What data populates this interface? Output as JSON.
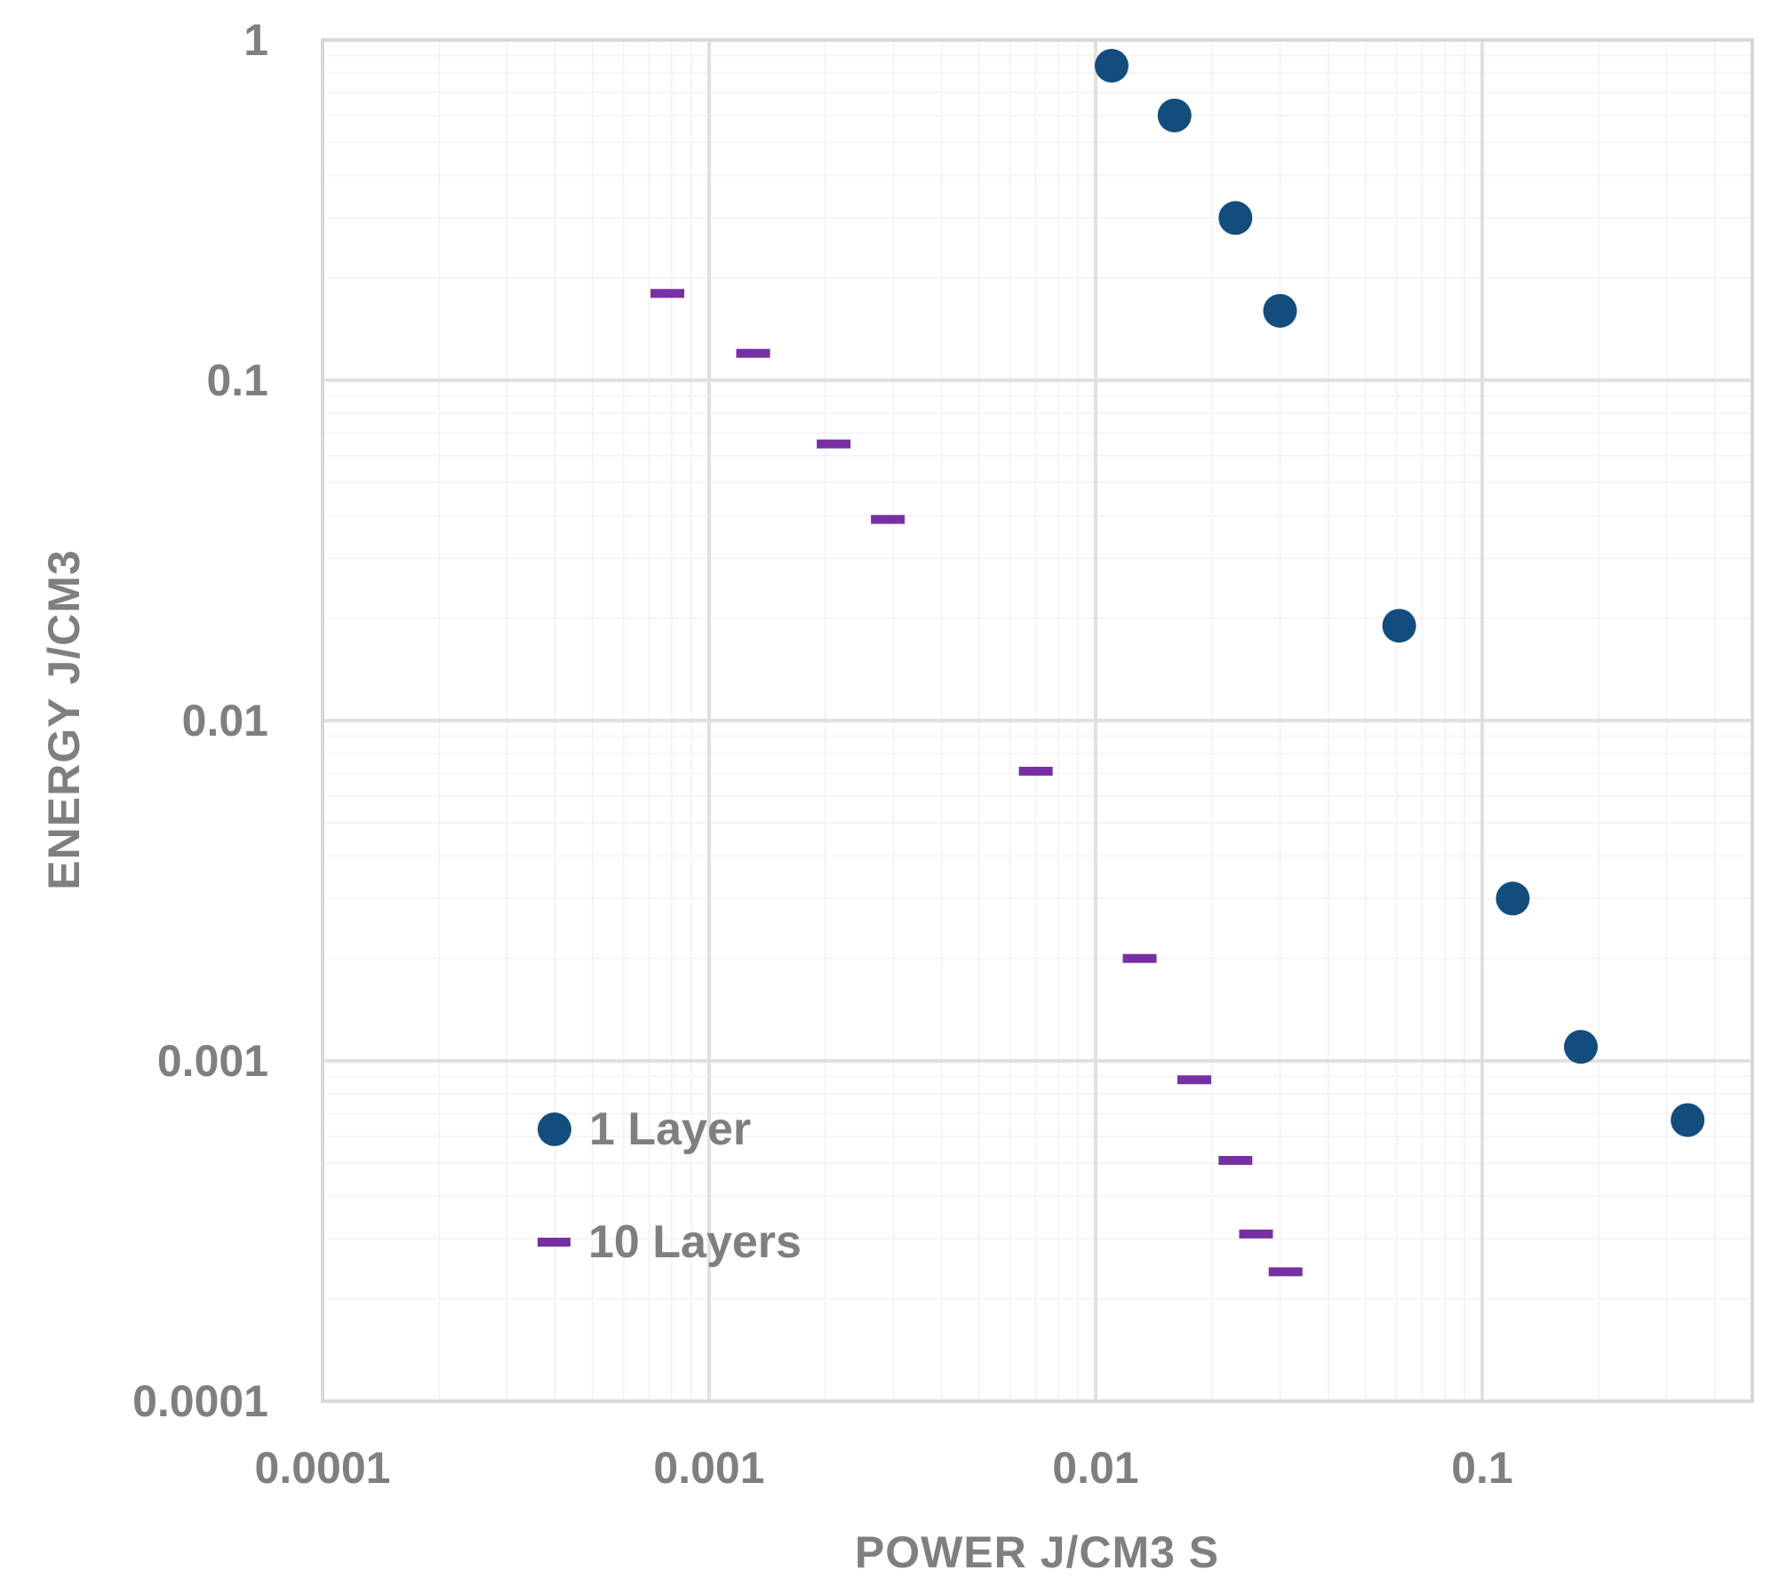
{
  "chart_data": {
    "type": "scatter",
    "title": "",
    "xlabel": "POWER J/CM3 S",
    "ylabel": "ENERGY J/CM3",
    "x_scale": "log",
    "y_scale": "log",
    "xlim": [
      0.0001,
      0.5
    ],
    "ylim": [
      0.0001,
      1
    ],
    "grid": "major and minor log gridlines, light gray",
    "legend_position": "inside-lower-left",
    "x_ticks": [
      {
        "label": "0.0001",
        "value": 0.0001
      },
      {
        "label": "0.001",
        "value": 0.001
      },
      {
        "label": "0.01",
        "value": 0.01
      },
      {
        "label": "0.1",
        "value": 0.1
      }
    ],
    "y_ticks": [
      {
        "label": "1",
        "value": 1
      },
      {
        "label": "0.1",
        "value": 0.1
      },
      {
        "label": "0.01",
        "value": 0.01
      },
      {
        "label": "0.001",
        "value": 0.001
      },
      {
        "label": "0.0001",
        "value": 0.0001
      }
    ],
    "series": [
      {
        "name": "1 Layer",
        "marker": "circle",
        "color": "#134d7e",
        "points": [
          [
            0.011,
            0.84
          ],
          [
            0.016,
            0.6
          ],
          [
            0.023,
            0.3
          ],
          [
            0.03,
            0.16
          ],
          [
            0.061,
            0.019
          ],
          [
            0.12,
            0.003
          ],
          [
            0.18,
            0.0011
          ],
          [
            0.34,
            0.00067
          ]
        ]
      },
      {
        "name": "10 Layers",
        "marker": "dash",
        "color": "#7630a3",
        "points": [
          [
            0.00078,
            0.18
          ],
          [
            0.0013,
            0.12
          ],
          [
            0.0021,
            0.065
          ],
          [
            0.0029,
            0.039
          ],
          [
            0.007,
            0.0071
          ],
          [
            0.013,
            0.002
          ],
          [
            0.018,
            0.00088
          ],
          [
            0.023,
            0.00051
          ],
          [
            0.026,
            0.00031
          ],
          [
            0.031,
            0.00024
          ]
        ]
      }
    ]
  },
  "colors": {
    "background": "#ffffff",
    "text_gray": "#7f7f7f",
    "grid_major": "#e0e0e0",
    "grid_minor": "#f4f4f4",
    "axis_frame": "#d8d8d8",
    "series_1_layer": "#134d7e",
    "series_10_layers": "#7630a3"
  }
}
